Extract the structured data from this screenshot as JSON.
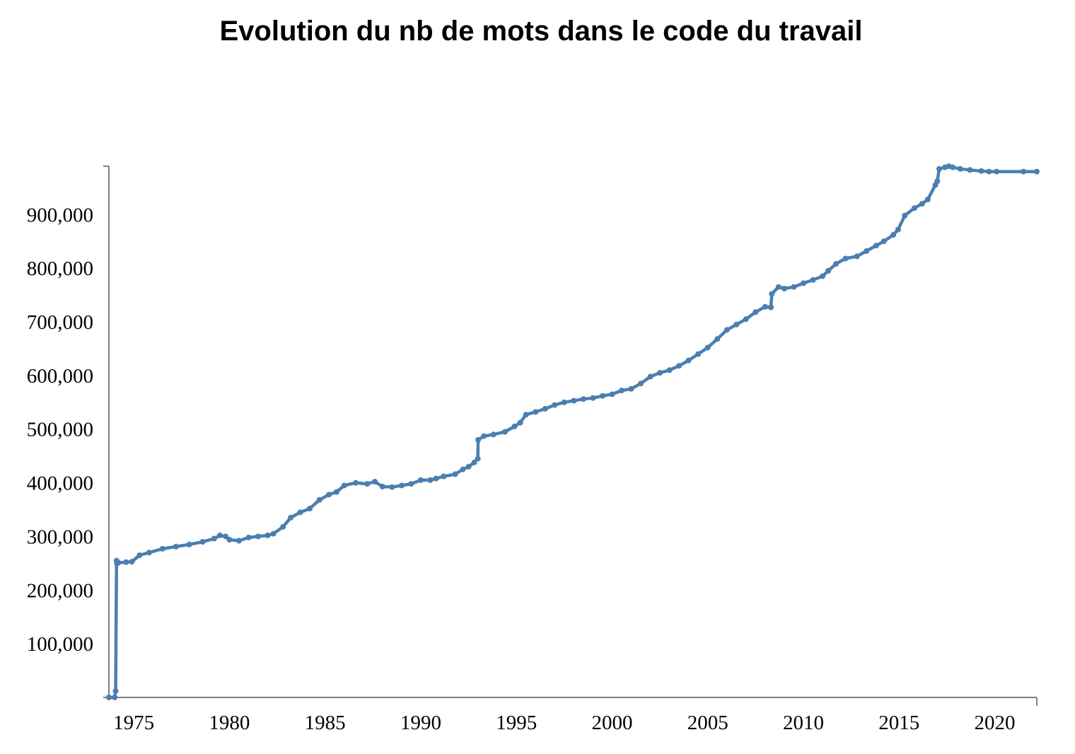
{
  "chart_data": {
    "type": "line",
    "title": "Evolution du nb de mots dans le code du travail",
    "xlabel": "",
    "ylabel": "",
    "xlim": [
      1973.7,
      2022.2
    ],
    "ylim": [
      0,
      990000
    ],
    "xticks": [
      {
        "value": 1975,
        "label": "1975"
      },
      {
        "value": 1980,
        "label": "1980"
      },
      {
        "value": 1985,
        "label": "1985"
      },
      {
        "value": 1990,
        "label": "1990"
      },
      {
        "value": 1995,
        "label": "1995"
      },
      {
        "value": 2000,
        "label": "2000"
      },
      {
        "value": 2005,
        "label": "2005"
      },
      {
        "value": 2010,
        "label": "2010"
      },
      {
        "value": 2015,
        "label": "2015"
      },
      {
        "value": 2020,
        "label": "2020"
      }
    ],
    "yticks": [
      {
        "value": 100000,
        "label": "100,000"
      },
      {
        "value": 200000,
        "label": "200,000"
      },
      {
        "value": 300000,
        "label": "300,000"
      },
      {
        "value": 400000,
        "label": "400,000"
      },
      {
        "value": 500000,
        "label": "500,000"
      },
      {
        "value": 600000,
        "label": "600,000"
      },
      {
        "value": 700000,
        "label": "700,000"
      },
      {
        "value": 800000,
        "label": "800,000"
      },
      {
        "value": 900000,
        "label": "900,000"
      }
    ],
    "grid": false,
    "legend": "none",
    "series": [
      {
        "color": "#4a7fb0",
        "x": [
          1973.7,
          1974.0,
          1974.05,
          1974.1,
          1974.12,
          1974.2,
          1974.6,
          1974.9,
          1975.3,
          1975.8,
          1976.5,
          1977.2,
          1977.9,
          1978.6,
          1979.2,
          1979.5,
          1979.8,
          1980.0,
          1980.5,
          1981.0,
          1981.5,
          1982.0,
          1982.3,
          1982.8,
          1983.2,
          1983.7,
          1984.2,
          1984.7,
          1985.2,
          1985.6,
          1986.0,
          1986.6,
          1987.2,
          1987.6,
          1988.0,
          1988.5,
          1989.0,
          1989.5,
          1990.0,
          1990.5,
          1990.8,
          1991.2,
          1991.8,
          1992.2,
          1992.5,
          1992.8,
          1992.98,
          1993.0,
          1993.3,
          1993.8,
          1994.4,
          1994.9,
          1995.2,
          1995.5,
          1996.0,
          1996.5,
          1997.0,
          1997.5,
          1998.0,
          1998.5,
          1999.0,
          1999.5,
          2000.0,
          2000.5,
          2001.0,
          2001.5,
          2002.0,
          2002.5,
          2003.0,
          2003.5,
          2004.0,
          2004.5,
          2005.0,
          2005.5,
          2006.0,
          2006.5,
          2007.0,
          2007.5,
          2008.0,
          2008.3,
          2008.35,
          2008.7,
          2009.0,
          2009.5,
          2010.0,
          2010.5,
          2011.0,
          2011.3,
          2011.7,
          2012.2,
          2012.8,
          2013.3,
          2013.8,
          2014.2,
          2014.7,
          2014.95,
          2015.3,
          2015.8,
          2016.2,
          2016.5,
          2016.9,
          2017.0,
          2017.1,
          2017.4,
          2017.6,
          2017.8,
          2018.2,
          2018.7,
          2019.3,
          2019.7,
          2020.1,
          2021.5,
          2022.2
        ],
        "values": [
          0,
          0,
          12000,
          255000,
          250000,
          251000,
          252000,
          253000,
          265000,
          270000,
          277000,
          281000,
          285000,
          290000,
          296000,
          302000,
          300000,
          294000,
          292000,
          298000,
          300000,
          302000,
          305000,
          318000,
          335000,
          345000,
          352000,
          368000,
          378000,
          383000,
          395000,
          400000,
          398000,
          402000,
          393000,
          392000,
          395000,
          398000,
          405000,
          405000,
          408000,
          412000,
          416000,
          425000,
          430000,
          438000,
          445000,
          480000,
          487000,
          490000,
          495000,
          505000,
          512000,
          527000,
          532000,
          538000,
          545000,
          550000,
          553000,
          556000,
          558000,
          562000,
          565000,
          572000,
          575000,
          585000,
          598000,
          605000,
          610000,
          618000,
          628000,
          640000,
          652000,
          668000,
          685000,
          695000,
          705000,
          718000,
          728000,
          727000,
          752000,
          765000,
          762000,
          765000,
          772000,
          778000,
          785000,
          795000,
          808000,
          818000,
          822000,
          832000,
          842000,
          850000,
          862000,
          872000,
          898000,
          912000,
          920000,
          928000,
          955000,
          962000,
          985000,
          988000,
          990000,
          988000,
          985000,
          983000,
          981000,
          980000,
          980000,
          980000,
          980000
        ]
      }
    ]
  }
}
